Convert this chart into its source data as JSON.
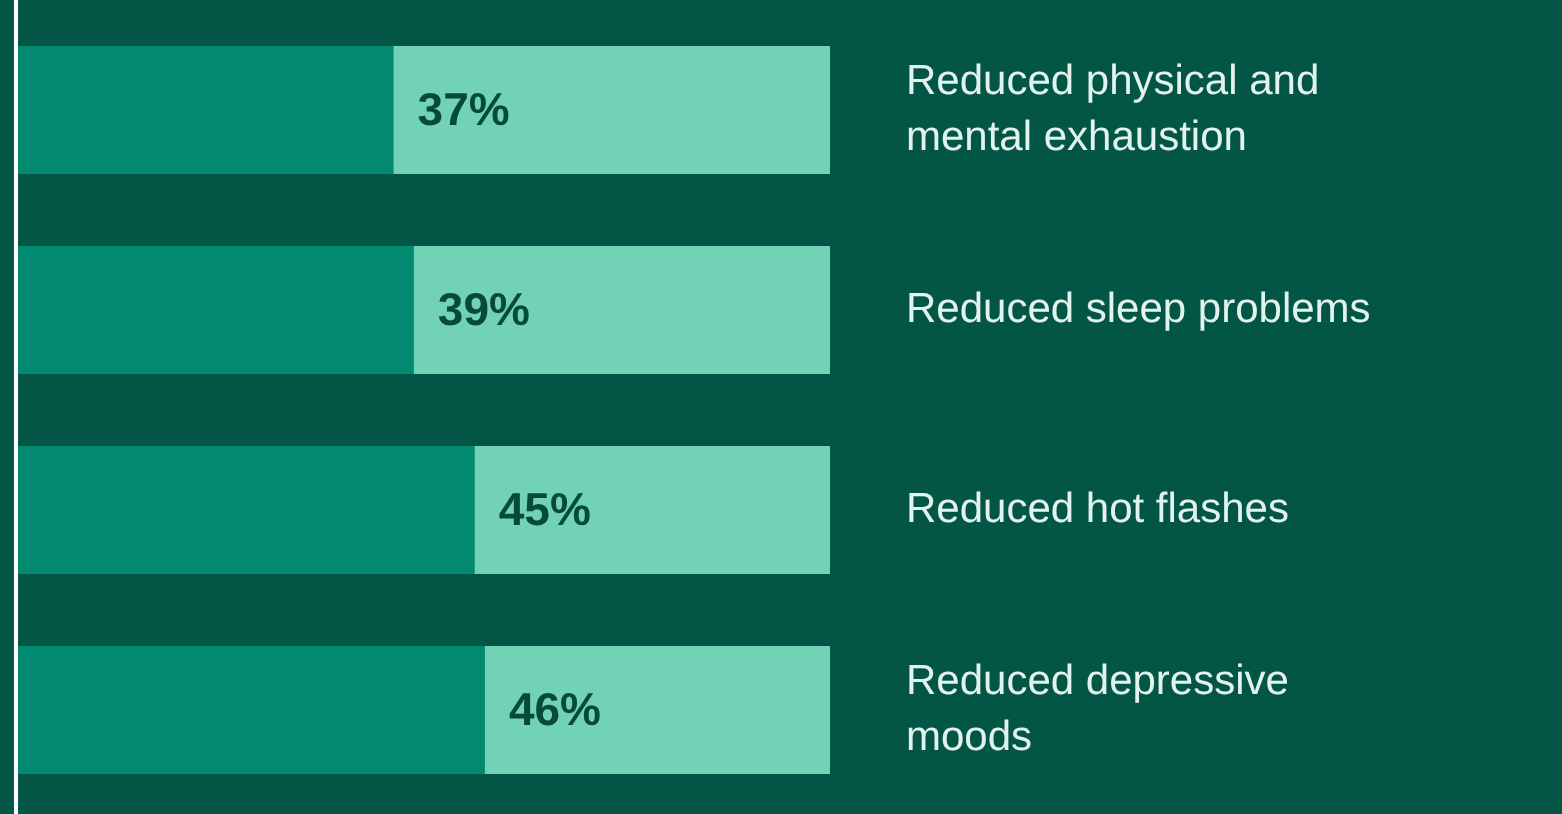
{
  "chart_data": {
    "type": "bar",
    "orientation": "horizontal",
    "legend": false,
    "categories": [
      "Reduced physical and mental exhaustion",
      "Reduced sleep problems",
      "Reduced hot flashes",
      "Reduced depressive moods"
    ],
    "series": [
      {
        "color": "#018a6f",
        "values": [
          37,
          39,
          45,
          46
        ],
        "value_labels": [
          "37%",
          "39%",
          "45%",
          "46%"
        ]
      }
    ]
  }
}
